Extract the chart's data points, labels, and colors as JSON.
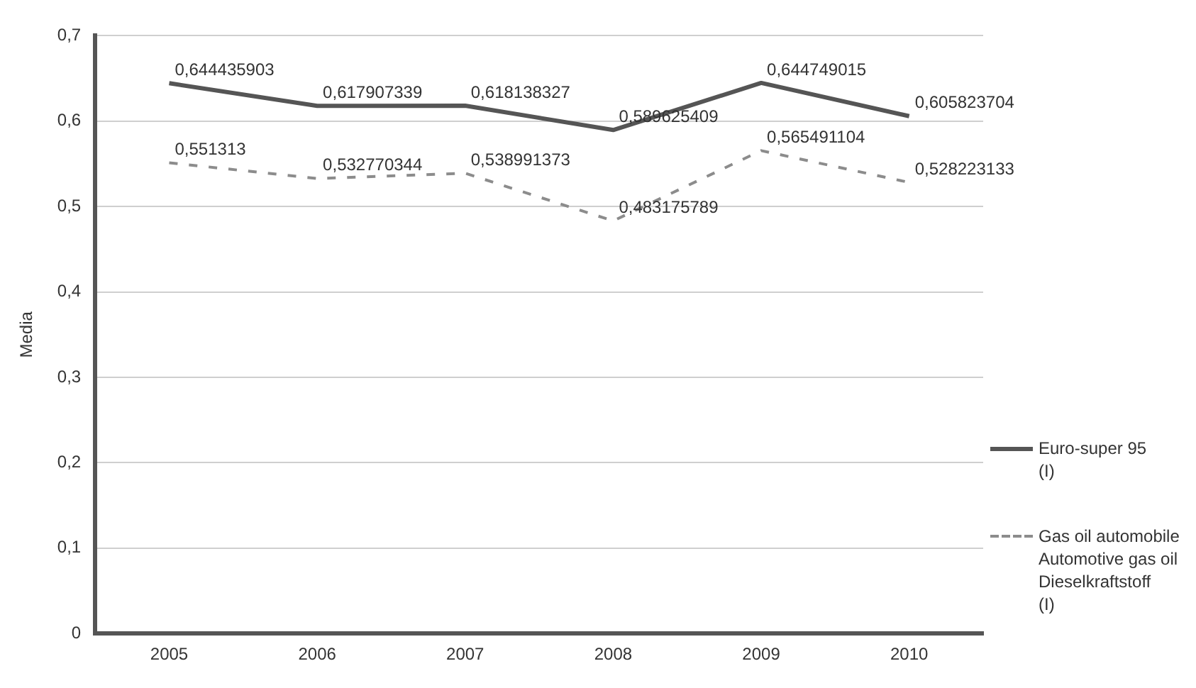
{
  "chart_data": {
    "type": "line",
    "ylabel": "Media",
    "categories": [
      "2005",
      "2006",
      "2007",
      "2008",
      "2009",
      "2010"
    ],
    "series": [
      {
        "name": "Euro-super 95\n(I)",
        "color": "#555555",
        "line_style": "solid",
        "values": [
          0.644435903,
          0.617907339,
          0.618138327,
          0.589625409,
          0.644749015,
          0.605823704
        ],
        "value_labels": [
          "0,644435903",
          "0,617907339",
          "0,618138327",
          "0,589625409",
          "0,644749015",
          "0,605823704"
        ]
      },
      {
        "name": "Gas oil automobile\nAutomotive gas oil\nDieselkraftstoff\n(I)",
        "color": "#8c8c8c",
        "line_style": "dashed",
        "values": [
          0.551313,
          0.532770344,
          0.538991373,
          0.483175789,
          0.565491104,
          0.528223133
        ],
        "value_labels": [
          "0,551313",
          "0,532770344",
          "0,538991373",
          "0,483175789",
          "0,565491104",
          "0,528223133"
        ]
      }
    ],
    "ylim": [
      0,
      0.7
    ],
    "yticks": [
      {
        "value": 0,
        "label": "0"
      },
      {
        "value": 0.1,
        "label": "0,1"
      },
      {
        "value": 0.2,
        "label": "0,2"
      },
      {
        "value": 0.3,
        "label": "0,3"
      },
      {
        "value": 0.4,
        "label": "0,4"
      },
      {
        "value": 0.5,
        "label": "0,5"
      },
      {
        "value": 0.6,
        "label": "0,6"
      },
      {
        "value": 0.7,
        "label": "0,7"
      }
    ],
    "grid": "y",
    "legend": "right",
    "marker": "none"
  }
}
